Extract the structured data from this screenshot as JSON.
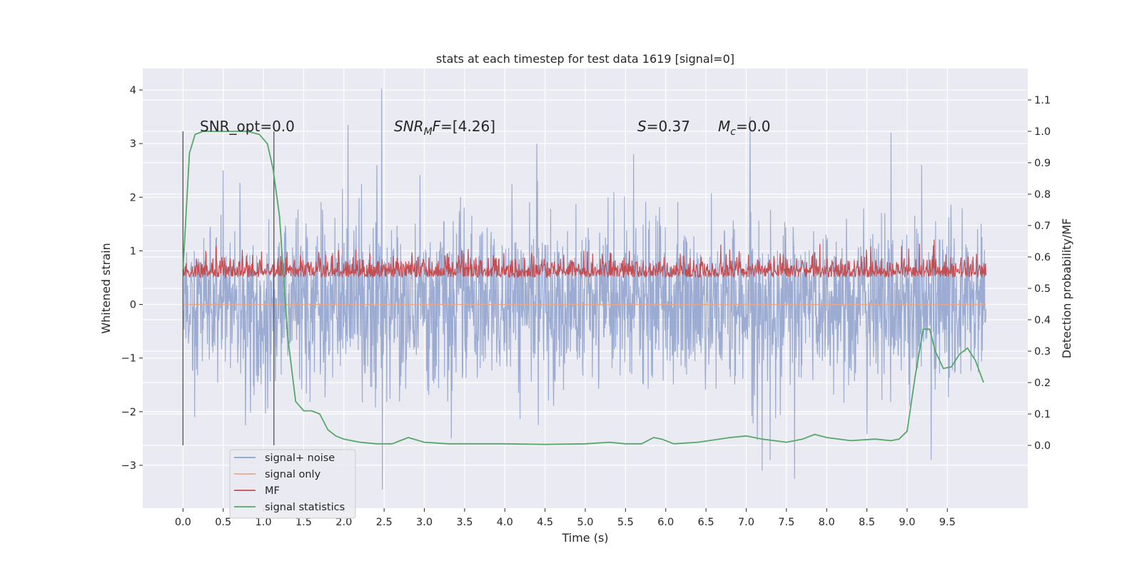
{
  "chart_data": {
    "type": "line",
    "title": "stats at each timestep for test data 1619 [signal=0]",
    "xlabel": "Time (s)",
    "ylabel": "Whitened strain",
    "y2label": "Detection probability/MF",
    "xlim": [
      -0.5,
      10.5
    ],
    "ylim": [
      -3.8,
      4.4
    ],
    "y2lim": [
      -0.2,
      1.2
    ],
    "xticks": [
      "0.0",
      "0.5",
      "1.0",
      "1.5",
      "2.0",
      "2.5",
      "3.0",
      "3.5",
      "4.0",
      "4.5",
      "5.0",
      "5.5",
      "6.0",
      "6.5",
      "7.0",
      "7.5",
      "8.0",
      "8.5",
      "9.0",
      "9.5"
    ],
    "yticks": [
      "4",
      "3",
      "2",
      "1",
      "0",
      "−1",
      "−2",
      "−3"
    ],
    "y2ticks": [
      "1.1",
      "1.0",
      "0.9",
      "0.8",
      "0.7",
      "0.6",
      "0.5",
      "0.4",
      "0.3",
      "0.2",
      "0.1",
      "0.0"
    ],
    "grid": true,
    "legend_position": "lower-left",
    "annotations": {
      "snr_opt": "SNR_opt=0.0",
      "snr_mf": "=[4.26]",
      "s_stat": "=0.37",
      "mc": "=0.0"
    },
    "vertical_markers": [
      0.0,
      1.13
    ],
    "series": [
      {
        "name": "signal+ noise",
        "color": "#8da0cb",
        "description": "whitened strain noise trace, roughly ±1.5 with spikes up to 4.0 and down to -3.5",
        "notable_peaks": [
          [
            0.5,
            2.5
          ],
          [
            2.05,
            3.35
          ],
          [
            2.47,
            4.02
          ],
          [
            2.48,
            -3.45
          ],
          [
            4.4,
            3.0
          ],
          [
            5.6,
            2.8
          ],
          [
            7.05,
            3.5
          ],
          [
            7.2,
            -3.1
          ],
          [
            7.3,
            -2.9
          ],
          [
            7.6,
            -3.25
          ],
          [
            8.8,
            3.2
          ],
          [
            9.3,
            -2.9
          ]
        ]
      },
      {
        "name": "signal only",
        "color": "#e8a98a",
        "values_note": "flat at 0"
      },
      {
        "name": "MF",
        "color": "#c44e52",
        "description": "matched-filter output on right axis, between about 0.5 and 0.63 with spikes to 0.66"
      },
      {
        "name": "signal statistics",
        "color": "#55a868",
        "x": [
          0.0,
          0.08,
          0.15,
          0.25,
          0.4,
          0.6,
          0.8,
          0.95,
          1.05,
          1.12,
          1.2,
          1.3,
          1.4,
          1.5,
          1.6,
          1.7,
          1.8,
          1.9,
          2.0,
          2.2,
          2.4,
          2.6,
          2.7,
          2.8,
          3.0,
          3.3,
          3.6,
          4.0,
          4.5,
          5.0,
          5.3,
          5.5,
          5.7,
          5.85,
          5.95,
          6.1,
          6.4,
          6.8,
          7.0,
          7.2,
          7.5,
          7.7,
          7.85,
          8.0,
          8.3,
          8.6,
          8.8,
          8.9,
          9.0,
          9.1,
          9.2,
          9.28,
          9.35,
          9.45,
          9.55,
          9.65,
          9.75,
          9.85,
          9.95
        ],
        "values": [
          0.56,
          0.93,
          0.99,
          1.0,
          1.0,
          1.0,
          1.0,
          0.99,
          0.96,
          0.88,
          0.73,
          0.35,
          0.14,
          0.11,
          0.11,
          0.1,
          0.05,
          0.03,
          0.02,
          0.01,
          0.005,
          0.005,
          0.015,
          0.025,
          0.01,
          0.005,
          0.005,
          0.005,
          0.003,
          0.005,
          0.01,
          0.005,
          0.005,
          0.025,
          0.02,
          0.005,
          0.01,
          0.025,
          0.03,
          0.02,
          0.01,
          0.02,
          0.035,
          0.025,
          0.015,
          0.02,
          0.015,
          0.02,
          0.045,
          0.22,
          0.37,
          0.37,
          0.3,
          0.245,
          0.25,
          0.29,
          0.31,
          0.27,
          0.2
        ]
      }
    ]
  }
}
